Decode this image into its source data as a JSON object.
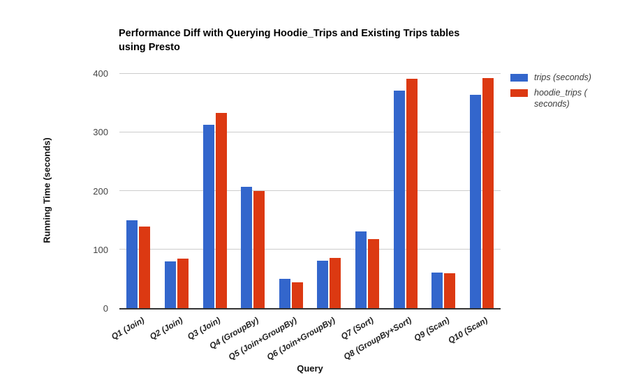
{
  "title": {
    "line1": "Performance Diff with Querying Hoodie_Trips and Existing Trips tables",
    "line2": "using Presto"
  },
  "chart_data": {
    "type": "bar",
    "title": "Performance Diff with Querying Hoodie_Trips and Existing Trips tables using Presto",
    "xlabel": "Query",
    "ylabel": "Running Time (seconds)",
    "ylim": [
      0,
      400
    ],
    "yticks": [
      0,
      100,
      200,
      300,
      400
    ],
    "grid": true,
    "legend_position": "right",
    "categories": [
      "Q1 (Join)",
      "Q2 (Join)",
      "Q3 (Join)",
      "Q4 (GroupBy)",
      "Q5 (Join+GroupBy)",
      "Q6 (Join+GroupBy)",
      "Q7 (Sort)",
      "Q8 (GroupBy+Sort)",
      "Q9 (Scan)",
      "Q10 (Scan)"
    ],
    "series": [
      {
        "name": "trips (seconds)",
        "color": "#3366CC",
        "values": [
          150,
          80,
          312,
          207,
          50,
          81,
          130,
          370,
          60,
          363
        ]
      },
      {
        "name": "hoodie_trips (seconds)",
        "color": "#DC3912",
        "values": [
          139,
          84,
          332,
          200,
          44,
          85,
          117,
          390,
          59,
          392
        ]
      }
    ]
  },
  "legend": {
    "items": [
      {
        "label": "trips (seconds)",
        "color": "#3366CC"
      },
      {
        "label": "hoodie_trips (\nseconds)",
        "color": "#DC3912"
      }
    ]
  },
  "colors": {
    "series_blue": "#3366CC",
    "series_red": "#DC3912",
    "gridline": "#cccccc",
    "axis_line": "#333333"
  }
}
